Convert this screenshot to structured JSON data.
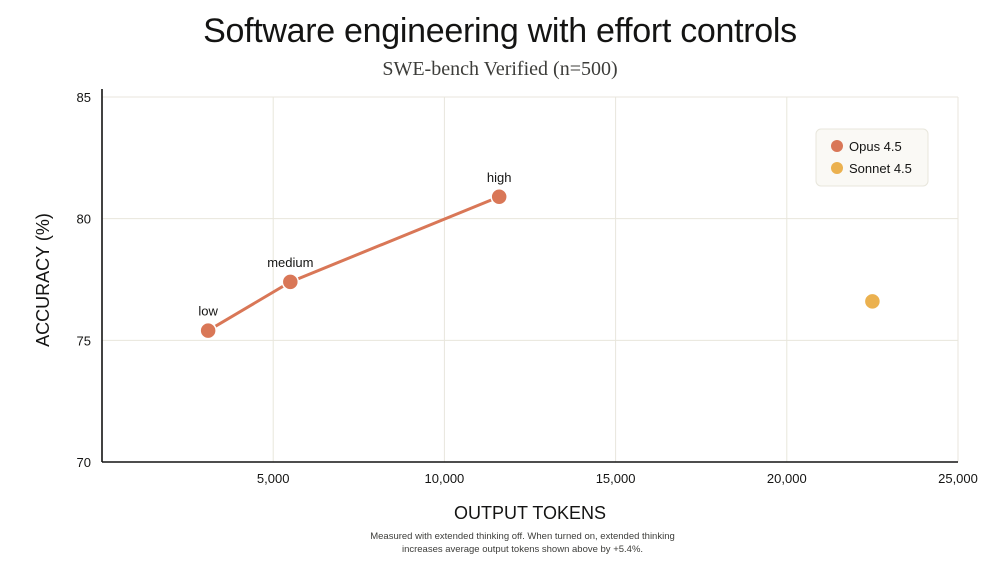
{
  "chart_data": {
    "type": "scatter",
    "title": "Software engineering with effort controls",
    "subtitle": "SWE-bench Verified (n=500)",
    "xlabel": "OUTPUT TOKENS",
    "ylabel": "ACCURACY (%)",
    "xlim": [
      0,
      25000
    ],
    "ylim": [
      70,
      85
    ],
    "x_ticks": [
      5000,
      10000,
      15000,
      20000,
      25000
    ],
    "x_tick_labels": [
      "5,000",
      "10,000",
      "15,000",
      "20,000",
      "25,000"
    ],
    "y_ticks": [
      70,
      75,
      80,
      85
    ],
    "y_tick_labels": [
      "70",
      "75",
      "80",
      "85"
    ],
    "grid": true,
    "legend_position": "top-right",
    "series": [
      {
        "name": "Opus 4.5",
        "color": "#d97757",
        "connected": true,
        "points": [
          {
            "x": 3100,
            "y": 75.4,
            "label": "low"
          },
          {
            "x": 5500,
            "y": 77.4,
            "label": "medium"
          },
          {
            "x": 11600,
            "y": 80.9,
            "label": "high"
          }
        ]
      },
      {
        "name": "Sonnet 4.5",
        "color": "#ebb14f",
        "connected": false,
        "points": [
          {
            "x": 22500,
            "y": 76.6,
            "label": ""
          }
        ]
      }
    ],
    "footnote": [
      "Measured with extended thinking off. When turned on, extended thinking",
      "increases average output tokens shown above by +5.4%."
    ]
  }
}
